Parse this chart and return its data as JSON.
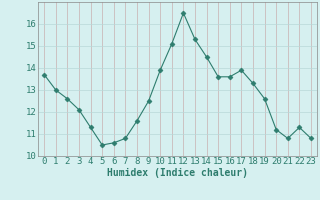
{
  "x": [
    0,
    1,
    2,
    3,
    4,
    5,
    6,
    7,
    8,
    9,
    10,
    11,
    12,
    13,
    14,
    15,
    16,
    17,
    18,
    19,
    20,
    21,
    22,
    23
  ],
  "y": [
    13.7,
    13.0,
    12.6,
    12.1,
    11.3,
    10.5,
    10.6,
    10.8,
    11.6,
    12.5,
    13.9,
    15.1,
    16.5,
    15.3,
    14.5,
    13.6,
    13.6,
    13.9,
    13.3,
    12.6,
    11.2,
    10.8,
    11.3,
    10.8
  ],
  "line_color": "#2e7d6e",
  "marker": "D",
  "marker_size": 2.5,
  "bg_color": "#d6f0f0",
  "grid_color_v": "#c8b0b0",
  "grid_color_h": "#b8d8d8",
  "xlabel": "Humidex (Indice chaleur)",
  "ylim": [
    10,
    17
  ],
  "xlim": [
    -0.5,
    23.5
  ],
  "yticks": [
    10,
    11,
    12,
    13,
    14,
    15,
    16
  ],
  "xticks": [
    0,
    1,
    2,
    3,
    4,
    5,
    6,
    7,
    8,
    9,
    10,
    11,
    12,
    13,
    14,
    15,
    16,
    17,
    18,
    19,
    20,
    21,
    22,
    23
  ],
  "label_fontsize": 7,
  "tick_fontsize": 6.5,
  "text_color": "#2e7d6e"
}
